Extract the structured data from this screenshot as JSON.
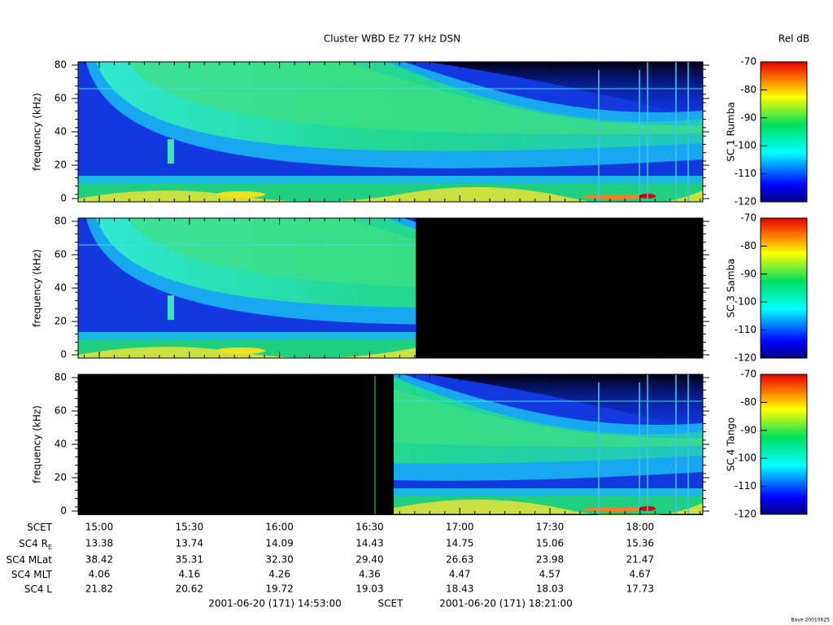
{
  "title": "Cluster WBD Ez 77 kHz DSN",
  "colorbar_title": "Rel dB",
  "panels": [
    {
      "spacecraft": "SC 1 Rumba",
      "ylabel": "frequency (kHz)",
      "ylim": [
        0,
        80
      ],
      "yticks": [
        0,
        20,
        40,
        60,
        80
      ],
      "clim": [
        -120,
        -70
      ],
      "cticks": [
        -70,
        -80,
        -90,
        -100,
        -110,
        -120
      ]
    },
    {
      "spacecraft": "SC 3 Samba",
      "ylabel": "frequency (kHz)",
      "ylim": [
        0,
        80
      ],
      "yticks": [
        0,
        20,
        40,
        60,
        80
      ],
      "clim": [
        -120,
        -70
      ],
      "cticks": [
        -70,
        -80,
        -90,
        -100,
        -110,
        -120
      ]
    },
    {
      "spacecraft": "SC 4 Tango",
      "ylabel": "frequency (kHz)",
      "ylim": [
        0,
        80
      ],
      "yticks": [
        0,
        20,
        40,
        60,
        80
      ],
      "clim": [
        -120,
        -70
      ],
      "cticks": [
        -70,
        -80,
        -90,
        -100,
        -110,
        -120
      ]
    }
  ],
  "ephemeris": {
    "rows": [
      {
        "label": "SCET",
        "values": [
          "15:00",
          "15:30",
          "16:00",
          "16:30",
          "17:00",
          "17:30",
          "18:00"
        ]
      },
      {
        "label": "SC4 R",
        "label_sub": "E",
        "values": [
          "13.38",
          "13.74",
          "14.09",
          "14.43",
          "14.75",
          "15.06",
          "15.36"
        ]
      },
      {
        "label": "SC4 MLat",
        "values": [
          "38.42",
          "35.31",
          "32.30",
          "29.40",
          "26.63",
          "23.98",
          "21.47"
        ]
      },
      {
        "label": "SC4 MLT",
        "values": [
          "4.06",
          "4.16",
          "4.26",
          "4.36",
          "4.47",
          "4.57",
          "4.67"
        ]
      },
      {
        "label": "SC4 L",
        "values": [
          "21.82",
          "20.62",
          "19.72",
          "19.03",
          "18.43",
          "18.03",
          "17.73"
        ]
      }
    ]
  },
  "time_range": {
    "start": "2001-06-20 (171) 14:53:00",
    "label": "SCET",
    "end": "2001-06-20 (171) 18:21:00"
  },
  "footer": "Bove 20010625"
}
